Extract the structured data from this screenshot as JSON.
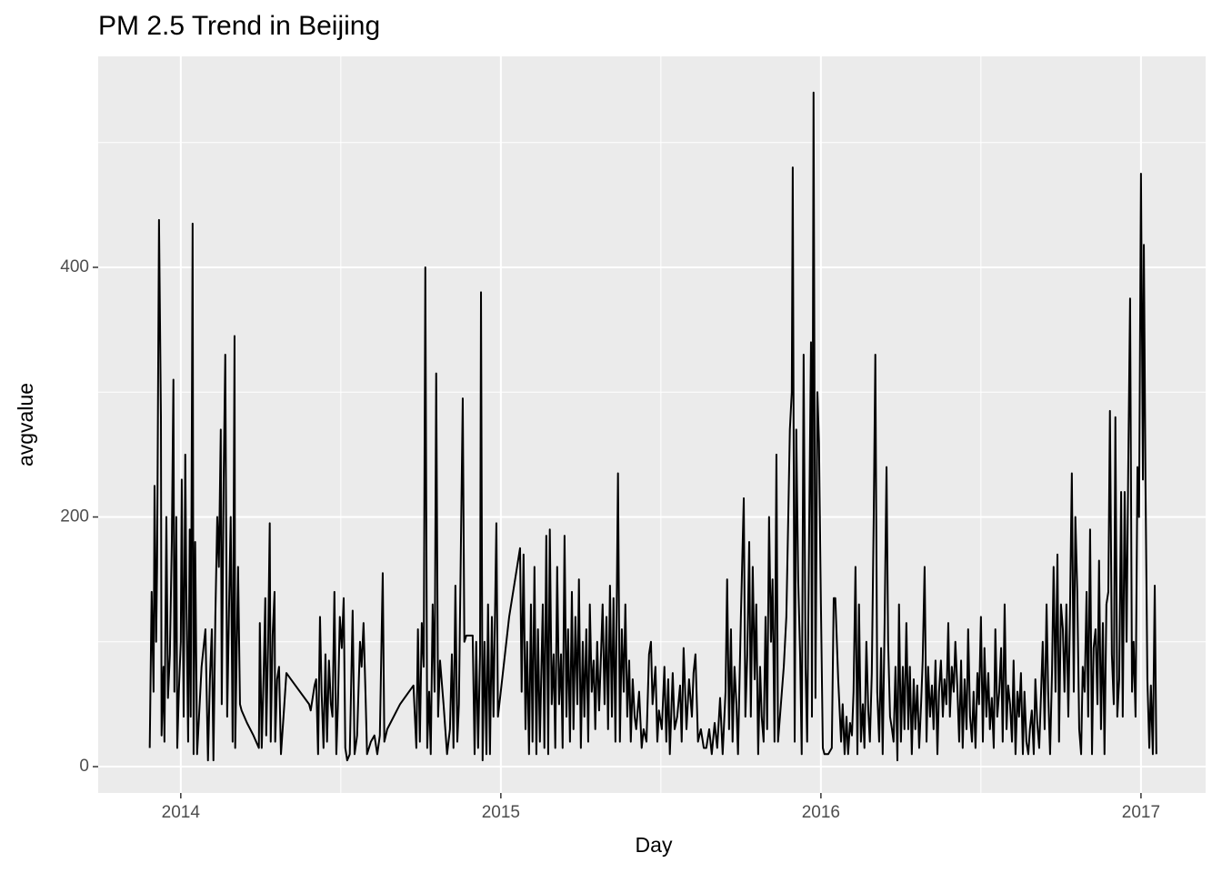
{
  "chart_data": {
    "type": "line",
    "title": "PM 2.5 Trend in Beijing",
    "x_label": "Day",
    "y_label": "avgvalue",
    "color": "#000000",
    "grid": true,
    "xlim": [
      2013.742,
      2017.202
    ],
    "xticks": [
      2014,
      2015,
      2016,
      2017
    ],
    "x_minor_grid": [
      2014.5,
      2015.5,
      2016.5
    ],
    "ylim": [
      -21.1,
      569
    ],
    "yticks": [
      0,
      200,
      400
    ],
    "y_minor_grid": [
      100,
      300,
      500
    ],
    "x": [
      2013.903,
      2013.909,
      2013.915,
      2013.918,
      2013.923,
      2013.926,
      2013.932,
      2013.938,
      2013.94,
      2013.946,
      2013.949,
      2013.955,
      2013.96,
      2013.966,
      2013.972,
      2013.977,
      2013.98,
      2013.986,
      2013.989,
      2013.994,
      2014.0,
      2014.003,
      2014.009,
      2014.014,
      2014.017,
      2014.023,
      2014.028,
      2014.031,
      2014.037,
      2014.04,
      2014.045,
      2014.051,
      2014.057,
      2014.065,
      2014.077,
      2014.085,
      2014.091,
      2014.097,
      2014.102,
      2014.108,
      2014.114,
      2014.119,
      2014.125,
      2014.128,
      2014.134,
      2014.139,
      2014.145,
      2014.151,
      2014.156,
      2014.162,
      2014.168,
      2014.17,
      2014.179,
      2014.185,
      2014.19,
      2014.207,
      2014.227,
      2014.244,
      2014.247,
      2014.253,
      2014.259,
      2014.264,
      2014.267,
      2014.273,
      2014.278,
      2014.281,
      2014.287,
      2014.293,
      2014.295,
      2014.301,
      2014.307,
      2014.313,
      2014.321,
      2014.33,
      2014.344,
      2014.401,
      2014.406,
      2014.418,
      2014.423,
      2014.429,
      2014.435,
      2014.44,
      2014.446,
      2014.452,
      2014.457,
      2014.463,
      2014.469,
      2014.474,
      2014.48,
      2014.486,
      2014.491,
      2014.497,
      2014.503,
      2014.509,
      2014.514,
      2014.52,
      2014.528,
      2014.537,
      2014.543,
      2014.551,
      2014.56,
      2014.565,
      2014.571,
      2014.577,
      2014.582,
      2014.594,
      2014.605,
      2014.614,
      2014.622,
      2014.631,
      2014.636,
      2014.645,
      2014.685,
      2014.727,
      2014.736,
      2014.741,
      2014.747,
      2014.753,
      2014.759,
      2014.764,
      2014.77,
      2014.776,
      2014.781,
      2014.787,
      2014.793,
      2014.798,
      2014.804,
      2014.81,
      2014.821,
      2014.832,
      2014.841,
      2014.847,
      2014.852,
      2014.858,
      2014.864,
      2014.869,
      2014.881,
      2014.886,
      2014.892,
      2014.912,
      2014.918,
      2014.923,
      2014.929,
      2014.935,
      2014.938,
      2014.943,
      2014.949,
      2014.955,
      2014.96,
      2014.966,
      2014.972,
      2014.977,
      2014.986,
      2014.991,
      2015.026,
      2015.06,
      2015.065,
      2015.071,
      2015.077,
      2015.082,
      2015.088,
      2015.094,
      2015.099,
      2015.105,
      2015.111,
      2015.116,
      2015.122,
      2015.131,
      2015.136,
      2015.142,
      2015.148,
      2015.153,
      2015.159,
      2015.165,
      2015.17,
      2015.176,
      2015.182,
      2015.188,
      2015.193,
      2015.199,
      2015.205,
      2015.21,
      2015.216,
      2015.222,
      2015.227,
      2015.233,
      2015.239,
      2015.244,
      2015.25,
      2015.256,
      2015.261,
      2015.267,
      2015.273,
      2015.278,
      2015.284,
      2015.29,
      2015.295,
      2015.301,
      2015.307,
      2015.313,
      2015.318,
      2015.324,
      2015.33,
      2015.335,
      2015.341,
      2015.347,
      2015.352,
      2015.358,
      2015.366,
      2015.372,
      2015.378,
      2015.384,
      2015.389,
      2015.395,
      2015.401,
      2015.406,
      2015.412,
      2015.418,
      2015.423,
      2015.432,
      2015.44,
      2015.446,
      2015.455,
      2015.463,
      2015.469,
      2015.474,
      2015.483,
      2015.489,
      2015.494,
      2015.503,
      2015.511,
      2015.517,
      2015.523,
      2015.528,
      2015.537,
      2015.543,
      2015.551,
      2015.56,
      2015.565,
      2015.571,
      2015.58,
      2015.588,
      2015.597,
      2015.602,
      2015.608,
      2015.616,
      2015.625,
      2015.634,
      2015.642,
      2015.651,
      2015.659,
      2015.668,
      2015.676,
      2015.685,
      2015.693,
      2015.702,
      2015.707,
      2015.713,
      2015.719,
      2015.724,
      2015.73,
      2015.736,
      2015.741,
      2015.75,
      2015.759,
      2015.764,
      2015.77,
      2015.776,
      2015.781,
      2015.787,
      2015.793,
      2015.798,
      2015.804,
      2015.81,
      2015.815,
      2015.821,
      2015.827,
      2015.832,
      2015.838,
      2015.844,
      2015.849,
      2015.855,
      2015.861,
      2015.866,
      2015.875,
      2015.884,
      2015.892,
      2015.898,
      2015.903,
      2015.909,
      2015.912,
      2015.918,
      2015.923,
      2015.929,
      2015.935,
      2015.94,
      2015.946,
      2015.952,
      2015.957,
      2015.963,
      2015.969,
      2015.972,
      2015.977,
      2015.983,
      2015.989,
      2015.994,
      2016.0,
      2016.006,
      2016.011,
      2016.023,
      2016.034,
      2016.04,
      2016.045,
      2016.054,
      2016.063,
      2016.068,
      2016.074,
      2016.08,
      2016.085,
      2016.091,
      2016.097,
      2016.102,
      2016.108,
      2016.114,
      2016.119,
      2016.125,
      2016.131,
      2016.136,
      2016.142,
      2016.148,
      2016.153,
      2016.159,
      2016.165,
      2016.17,
      2016.176,
      2016.182,
      2016.188,
      2016.193,
      2016.199,
      2016.205,
      2016.21,
      2016.216,
      2016.222,
      2016.227,
      2016.233,
      2016.239,
      2016.244,
      2016.25,
      2016.256,
      2016.261,
      2016.267,
      2016.273,
      2016.278,
      2016.284,
      2016.29,
      2016.295,
      2016.301,
      2016.307,
      2016.313,
      2016.318,
      2016.324,
      2016.33,
      2016.335,
      2016.341,
      2016.347,
      2016.352,
      2016.358,
      2016.364,
      2016.369,
      2016.375,
      2016.381,
      2016.386,
      2016.392,
      2016.398,
      2016.403,
      2016.409,
      2016.415,
      2016.42,
      2016.426,
      2016.432,
      2016.438,
      2016.443,
      2016.449,
      2016.455,
      2016.46,
      2016.466,
      2016.472,
      2016.477,
      2016.483,
      2016.489,
      2016.494,
      2016.5,
      2016.506,
      2016.511,
      2016.517,
      2016.523,
      2016.528,
      2016.534,
      2016.54,
      2016.545,
      2016.551,
      2016.557,
      2016.563,
      2016.568,
      2016.574,
      2016.58,
      2016.585,
      2016.591,
      2016.597,
      2016.602,
      2016.608,
      2016.614,
      2016.619,
      2016.625,
      2016.631,
      2016.636,
      2016.642,
      2016.648,
      2016.653,
      2016.659,
      2016.665,
      2016.67,
      2016.676,
      2016.682,
      2016.688,
      2016.693,
      2016.699,
      2016.705,
      2016.71,
      2016.716,
      2016.722,
      2016.727,
      2016.733,
      2016.739,
      2016.744,
      2016.75,
      2016.756,
      2016.761,
      2016.767,
      2016.773,
      2016.778,
      2016.784,
      2016.79,
      2016.795,
      2016.801,
      2016.807,
      2016.813,
      2016.818,
      2016.824,
      2016.83,
      2016.835,
      2016.841,
      2016.847,
      2016.852,
      2016.858,
      2016.864,
      2016.869,
      2016.875,
      2016.881,
      2016.886,
      2016.892,
      2016.898,
      2016.903,
      2016.909,
      2016.915,
      2016.92,
      2016.926,
      2016.932,
      2016.938,
      2016.943,
      2016.949,
      2016.955,
      2016.96,
      2016.966,
      2016.972,
      2016.977,
      2016.983,
      2016.989,
      2016.994,
      2017.0,
      2017.006,
      2017.009,
      2017.014,
      2017.02,
      2017.026,
      2017.031,
      2017.037,
      2017.043,
      2017.048
    ],
    "values": [
      15,
      140,
      60,
      225,
      100,
      160,
      438,
      280,
      25,
      80,
      20,
      200,
      55,
      90,
      180,
      310,
      60,
      200,
      15,
      60,
      100,
      230,
      40,
      250,
      150,
      20,
      190,
      40,
      435,
      10,
      180,
      10,
      40,
      80,
      110,
      5,
      70,
      110,
      5,
      120,
      200,
      160,
      270,
      50,
      230,
      330,
      40,
      130,
      200,
      20,
      345,
      15,
      160,
      50,
      45,
      35,
      25,
      15,
      115,
      15,
      75,
      135,
      25,
      100,
      195,
      20,
      105,
      140,
      20,
      70,
      80,
      10,
      40,
      75,
      70,
      50,
      45,
      65,
      70,
      10,
      120,
      60,
      15,
      90,
      20,
      85,
      50,
      40,
      140,
      10,
      50,
      120,
      95,
      135,
      15,
      5,
      10,
      125,
      10,
      25,
      100,
      80,
      115,
      60,
      10,
      20,
      25,
      10,
      25,
      155,
      20,
      30,
      50,
      65,
      15,
      110,
      20,
      115,
      80,
      400,
      15,
      60,
      10,
      130,
      60,
      315,
      40,
      85,
      50,
      10,
      30,
      90,
      15,
      145,
      20,
      50,
      295,
      100,
      105,
      105,
      10,
      100,
      15,
      90,
      380,
      5,
      100,
      10,
      130,
      10,
      120,
      40,
      195,
      40,
      120,
      175,
      60,
      170,
      30,
      100,
      10,
      130,
      20,
      160,
      10,
      110,
      20,
      130,
      15,
      185,
      10,
      190,
      50,
      90,
      15,
      160,
      50,
      90,
      15,
      185,
      40,
      110,
      20,
      140,
      30,
      120,
      50,
      150,
      15,
      100,
      40,
      110,
      20,
      130,
      60,
      85,
      30,
      100,
      45,
      90,
      130,
      50,
      120,
      30,
      145,
      40,
      135,
      20,
      235,
      20,
      110,
      60,
      130,
      40,
      85,
      20,
      70,
      40,
      30,
      60,
      15,
      30,
      20,
      90,
      100,
      50,
      80,
      20,
      45,
      30,
      80,
      20,
      70,
      10,
      75,
      30,
      40,
      65,
      20,
      95,
      30,
      70,
      40,
      75,
      90,
      20,
      30,
      15,
      15,
      30,
      10,
      35,
      15,
      55,
      10,
      60,
      150,
      30,
      110,
      20,
      80,
      50,
      10,
      120,
      215,
      40,
      90,
      180,
      40,
      160,
      70,
      130,
      10,
      80,
      40,
      20,
      120,
      30,
      200,
      100,
      150,
      20,
      250,
      20,
      50,
      80,
      120,
      200,
      270,
      300,
      480,
      20,
      270,
      150,
      90,
      10,
      330,
      80,
      20,
      180,
      340,
      40,
      540,
      55,
      300,
      260,
      130,
      15,
      10,
      10,
      15,
      135,
      135,
      70,
      20,
      50,
      10,
      40,
      10,
      35,
      25,
      60,
      160,
      10,
      130,
      20,
      50,
      15,
      100,
      45,
      20,
      75,
      200,
      330,
      60,
      20,
      95,
      10,
      115,
      240,
      100,
      40,
      30,
      20,
      80,
      5,
      130,
      20,
      80,
      30,
      115,
      30,
      80,
      10,
      70,
      30,
      65,
      15,
      50,
      85,
      160,
      20,
      80,
      40,
      65,
      30,
      85,
      10,
      60,
      85,
      40,
      70,
      50,
      115,
      40,
      80,
      60,
      100,
      65,
      20,
      85,
      15,
      70,
      30,
      110,
      40,
      20,
      60,
      15,
      75,
      50,
      120,
      20,
      95,
      40,
      75,
      30,
      55,
      15,
      110,
      40,
      60,
      95,
      20,
      130,
      30,
      65,
      50,
      20,
      85,
      10,
      60,
      40,
      75,
      10,
      60,
      20,
      10,
      30,
      45,
      10,
      70,
      35,
      15,
      60,
      100,
      30,
      130,
      60,
      10,
      75,
      160,
      60,
      170,
      20,
      130,
      110,
      60,
      130,
      40,
      120,
      235,
      60,
      200,
      140,
      30,
      10,
      80,
      60,
      140,
      40,
      190,
      10,
      95,
      110,
      50,
      165,
      30,
      115,
      10,
      130,
      140,
      285,
      90,
      50,
      280,
      40,
      70,
      220,
      40,
      220,
      100,
      235,
      375,
      60,
      100,
      40,
      240,
      200,
      475,
      230,
      418,
      230,
      70,
      15,
      65,
      10,
      145,
      10
    ]
  }
}
